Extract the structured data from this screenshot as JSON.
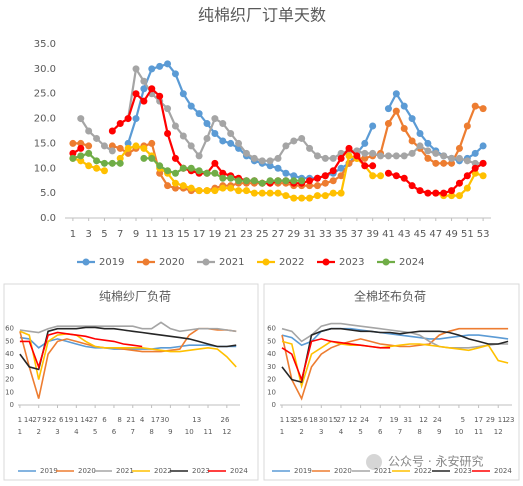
{
  "chart_data": [
    {
      "type": "line",
      "title": "纯棉织厂订单天数",
      "x": [
        1,
        2,
        3,
        4,
        5,
        6,
        7,
        8,
        9,
        10,
        11,
        12,
        13,
        14,
        15,
        16,
        17,
        18,
        19,
        20,
        21,
        22,
        23,
        24,
        25,
        26,
        27,
        28,
        29,
        30,
        31,
        32,
        33,
        34,
        35,
        36,
        37,
        38,
        39,
        40,
        41,
        42,
        43,
        44,
        45,
        46,
        47,
        48,
        49,
        50,
        51,
        52,
        53
      ],
      "xlim": [
        0,
        54
      ],
      "xticks": [
        1,
        3,
        5,
        7,
        9,
        11,
        13,
        15,
        17,
        19,
        21,
        23,
        25,
        27,
        29,
        31,
        33,
        35,
        37,
        39,
        41,
        43,
        45,
        47,
        49,
        51,
        53
      ],
      "ylim": [
        0,
        35
      ],
      "yticks": [
        {
          "value": 0,
          "label": "0.0"
        },
        {
          "value": 5,
          "label": "5.0"
        },
        {
          "value": 10,
          "label": "10.0"
        },
        {
          "value": 15,
          "label": "15.0"
        },
        {
          "value": 20,
          "label": "20.0"
        },
        {
          "value": 25,
          "label": "25.0"
        },
        {
          "value": 30,
          "label": "30.0"
        },
        {
          "value": 35,
          "label": "35.0"
        }
      ],
      "grid": false,
      "markers": true,
      "legend": "bottom",
      "series": [
        {
          "name": "2019",
          "color": "#5b9bd5",
          "values": [
            null,
            null,
            null,
            null,
            null,
            null,
            null,
            15,
            20,
            26,
            30,
            30.5,
            31,
            29,
            25,
            22.5,
            21,
            19,
            17,
            15.5,
            15,
            14,
            12.5,
            11.5,
            11,
            10.5,
            10,
            9,
            8.5,
            8,
            8,
            8,
            8.5,
            9,
            10,
            11,
            13,
            15,
            18.5,
            null,
            22,
            25,
            22.5,
            20,
            17,
            15,
            13.5,
            12.5,
            12,
            11.5,
            12,
            13,
            14.5
          ]
        },
        {
          "name": "2020",
          "color": "#ed7d31",
          "values": [
            15,
            15,
            14.5,
            null,
            null,
            14.5,
            14,
            13,
            14,
            14.5,
            15,
            9,
            6.5,
            6,
            6,
            5.5,
            5.5,
            5.5,
            6,
            6.5,
            6.5,
            7,
            7,
            7,
            7,
            7,
            7,
            7,
            6.5,
            6.5,
            6.5,
            6.5,
            7,
            7.5,
            8.5,
            11,
            12,
            12,
            12.5,
            13,
            19,
            21.5,
            18,
            15.5,
            14,
            12,
            11,
            11,
            11,
            14,
            18.5,
            22.5,
            22
          ]
        },
        {
          "name": "2021",
          "color": "#a5a5a5",
          "values": [
            null,
            20,
            17.5,
            16,
            14.5,
            13.5,
            null,
            20,
            30,
            27.5,
            25,
            23.5,
            22,
            18.5,
            16.5,
            14.5,
            12.5,
            16,
            20,
            19,
            17,
            15,
            13,
            12,
            11.5,
            11.5,
            12,
            14.5,
            15.5,
            16,
            14,
            12.5,
            12,
            12,
            13,
            13.5,
            13.5,
            13,
            13,
            12.5,
            12.5,
            12.5,
            12.5,
            13,
            14.5,
            13.5,
            13,
            12.5,
            12,
            12,
            11.5,
            11,
            11
          ]
        },
        {
          "name": "2022",
          "color": "#ffc000",
          "values": [
            12,
            11.5,
            10.5,
            10,
            9.5,
            null,
            12,
            14,
            14.5,
            14,
            12.5,
            10,
            9,
            7,
            6.5,
            6,
            5.5,
            5.5,
            5.5,
            6,
            6,
            5.5,
            5.5,
            5,
            5,
            5,
            5,
            4.5,
            4,
            4,
            4,
            4.5,
            4.5,
            5,
            5,
            12.5,
            12,
            10.5,
            8.5,
            8.5,
            null,
            null,
            null,
            null,
            null,
            null,
            5,
            4.5,
            4.5,
            4.5,
            6,
            9,
            8.5
          ]
        },
        {
          "name": "2023",
          "color": "#ff0000",
          "values": [
            13,
            14,
            null,
            null,
            null,
            17.5,
            19,
            20,
            25,
            23.5,
            26,
            24.5,
            17,
            12,
            10,
            9.5,
            9,
            9,
            11,
            9,
            8.5,
            8,
            7.5,
            7.5,
            7,
            7,
            7.5,
            7.5,
            7,
            7,
            7.5,
            8,
            8.5,
            9.5,
            12,
            14,
            12.5,
            10.5,
            10.5,
            null,
            9,
            8.5,
            8,
            6.5,
            5.5,
            5,
            5,
            5,
            5.5,
            7,
            8.5,
            10,
            11
          ]
        },
        {
          "name": "2024",
          "color": "#70ad47",
          "values": [
            12,
            12.5,
            13,
            11.5,
            11,
            11,
            11,
            null,
            null,
            12,
            12,
            10.5,
            9.5,
            9,
            10,
            10,
            9.5,
            9,
            9,
            8,
            8,
            7.5,
            7.5,
            7.5,
            7,
            7.5,
            7.5,
            7.5,
            7.5,
            7.5,
            null,
            null,
            null,
            null,
            null,
            null,
            null,
            null,
            null,
            null,
            null,
            null,
            null,
            null,
            null,
            null,
            null,
            null,
            null,
            null,
            null,
            null,
            null
          ]
        }
      ]
    },
    {
      "type": "line",
      "title": "纯棉纱厂负荷",
      "x": [
        1,
        1.5,
        2,
        2.5,
        3,
        3.5,
        4,
        4.5,
        5,
        5.5,
        6,
        6.5,
        7,
        7.5,
        8,
        8.5,
        9,
        9.5,
        10,
        10.5,
        11,
        11.5,
        12,
        12.5
      ],
      "xlim": [
        0.9,
        12.7
      ],
      "xticks": [
        1,
        2,
        3,
        4,
        5,
        6,
        7,
        8,
        9,
        10,
        11,
        12
      ],
      "xticks_days": [
        {
          "value": 1,
          "label": "1"
        },
        {
          "value": 1.45,
          "label": "14"
        },
        {
          "value": 1.9,
          "label": "27"
        },
        {
          "value": 2.3,
          "label": "9"
        },
        {
          "value": 2.7,
          "label": "22"
        },
        {
          "value": 3.2,
          "label": "6"
        },
        {
          "value": 3.6,
          "label": "19"
        },
        {
          "value": 4.0,
          "label": "1"
        },
        {
          "value": 4.45,
          "label": "14"
        },
        {
          "value": 4.9,
          "label": "27"
        },
        {
          "value": 5.5,
          "label": "6"
        },
        {
          "value": 6.3,
          "label": "8"
        },
        {
          "value": 6.9,
          "label": "21"
        },
        {
          "value": 7.5,
          "label": "4"
        },
        {
          "value": 8.2,
          "label": "17"
        },
        {
          "value": 8.7,
          "label": "30"
        },
        {
          "value": 10.4,
          "label": "13"
        },
        {
          "value": 11.9,
          "label": "26"
        }
      ],
      "ylim": [
        0,
        70
      ],
      "yticks": [
        0,
        10,
        20,
        30,
        40,
        50,
        60
      ],
      "grid": false,
      "markers": false,
      "legend": "bottom",
      "series": [
        {
          "name": "2019",
          "color": "#5b9bd5",
          "values": [
            53,
            52,
            45,
            50,
            52,
            50,
            48,
            46,
            45,
            45,
            44,
            44,
            44,
            44,
            44,
            45,
            45,
            46,
            47,
            47,
            47,
            46,
            46,
            46
          ]
        },
        {
          "name": "2020",
          "color": "#ed7d31",
          "values": [
            58,
            30,
            5,
            40,
            50,
            52,
            50,
            48,
            46,
            45,
            45,
            44,
            43,
            42,
            42,
            42,
            43,
            44,
            55,
            60,
            60,
            59,
            59,
            58
          ]
        },
        {
          "name": "2021",
          "color": "#a5a5a5",
          "values": [
            59,
            58,
            57,
            60,
            62,
            62,
            62,
            62,
            62,
            62,
            62,
            62,
            62,
            60,
            60,
            65,
            60,
            58,
            59,
            60,
            60,
            60,
            59,
            58
          ]
        },
        {
          "name": "2022",
          "color": "#ffc000",
          "values": [
            58,
            55,
            20,
            50,
            55,
            56,
            55,
            50,
            46,
            45,
            45,
            45,
            45,
            45,
            44,
            43,
            42,
            42,
            43,
            44,
            45,
            44,
            38,
            30
          ]
        },
        {
          "name": "2023",
          "color": "#262626",
          "values": [
            40,
            30,
            28,
            58,
            60,
            60,
            60,
            61,
            61,
            60,
            60,
            59,
            58,
            57,
            56,
            55,
            54,
            53,
            52,
            50,
            48,
            46,
            46,
            47
          ]
        },
        {
          "name": "2024",
          "color": "#ff0000",
          "values": [
            50,
            50,
            30,
            55,
            57,
            56,
            55,
            54,
            52,
            51,
            50,
            48,
            47,
            46,
            null,
            null,
            null,
            null,
            null,
            null,
            null,
            null,
            null,
            null
          ]
        }
      ]
    },
    {
      "type": "line",
      "title": "全棉坯布负荷",
      "x": [
        1,
        1.5,
        2,
        2.5,
        3,
        3.5,
        4,
        4.5,
        5,
        5.5,
        6,
        6.5,
        7,
        7.5,
        8,
        8.5,
        9,
        9.5,
        10,
        10.5,
        11,
        11.5,
        12,
        12.5
      ],
      "xlim": [
        0.9,
        12.7
      ],
      "xticks": [
        1,
        2,
        3,
        4,
        5,
        6,
        7,
        8,
        9,
        10,
        11,
        12
      ],
      "xticks_days": [
        {
          "value": 1,
          "label": "1"
        },
        {
          "value": 1.4,
          "label": "13"
        },
        {
          "value": 1.8,
          "label": "25"
        },
        {
          "value": 2.2,
          "label": "6"
        },
        {
          "value": 2.6,
          "label": "18"
        },
        {
          "value": 3.1,
          "label": "30"
        },
        {
          "value": 3.6,
          "label": "15"
        },
        {
          "value": 4.0,
          "label": "27"
        },
        {
          "value": 4.6,
          "label": "12"
        },
        {
          "value": 5.2,
          "label": "24"
        },
        {
          "value": 6.0,
          "label": "7"
        },
        {
          "value": 6.7,
          "label": "19"
        },
        {
          "value": 7.4,
          "label": "31"
        },
        {
          "value": 8.2,
          "label": "12"
        },
        {
          "value": 8.9,
          "label": "24"
        },
        {
          "value": 10.2,
          "label": "5"
        },
        {
          "value": 11.0,
          "label": "17"
        },
        {
          "value": 11.6,
          "label": "29"
        },
        {
          "value": 12.2,
          "label": "11"
        },
        {
          "value": 12.6,
          "label": "23"
        }
      ],
      "ylim": [
        0,
        70
      ],
      "yticks": [
        0,
        10,
        20,
        30,
        40,
        50,
        60
      ],
      "grid": false,
      "markers": false,
      "legend": "bottom",
      "series": [
        {
          "name": "2019",
          "color": "#5b9bd5",
          "values": [
            55,
            53,
            47,
            50,
            58,
            60,
            60,
            60,
            59,
            58,
            57,
            56,
            55,
            54,
            53,
            52,
            52,
            53,
            54,
            55,
            55,
            54,
            53,
            52
          ]
        },
        {
          "name": "2020",
          "color": "#ed7d31",
          "values": [
            55,
            20,
            5,
            30,
            40,
            45,
            48,
            50,
            52,
            50,
            48,
            47,
            46,
            46,
            47,
            48,
            55,
            58,
            60,
            60,
            60,
            60,
            60,
            60
          ]
        },
        {
          "name": "2021",
          "color": "#a5a5a5",
          "values": [
            60,
            58,
            50,
            55,
            62,
            64,
            64,
            63,
            62,
            61,
            60,
            59,
            58,
            57,
            55,
            50,
            46,
            45,
            45,
            45,
            46,
            47,
            48,
            48
          ]
        },
        {
          "name": "2022",
          "color": "#ffc000",
          "values": [
            50,
            48,
            15,
            40,
            45,
            50,
            48,
            47,
            47,
            46,
            45,
            46,
            47,
            48,
            48,
            47,
            46,
            45,
            44,
            43,
            45,
            47,
            35,
            33
          ]
        },
        {
          "name": "2023",
          "color": "#262626",
          "values": [
            30,
            20,
            18,
            55,
            58,
            60,
            60,
            59,
            58,
            58,
            57,
            57,
            56,
            57,
            58,
            58,
            58,
            57,
            55,
            52,
            50,
            48,
            48,
            50
          ]
        },
        {
          "name": "2024",
          "color": "#ff0000",
          "values": [
            45,
            40,
            20,
            50,
            52,
            50,
            49,
            48,
            47,
            46,
            45,
            45,
            null,
            null,
            null,
            null,
            null,
            null,
            null,
            null,
            null,
            null,
            null,
            null
          ]
        }
      ]
    }
  ],
  "watermark": "公众号 · 永安研究"
}
